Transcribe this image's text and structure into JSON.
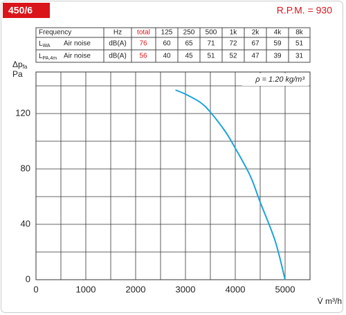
{
  "header": {
    "model": "450/6",
    "rpm": "R.P.M. = 930"
  },
  "table": {
    "columns": [
      "Frequency",
      "Hz",
      "total",
      "125",
      "250",
      "500",
      "1k",
      "2k",
      "4k",
      "8k"
    ],
    "rows": [
      {
        "symbol": "L",
        "sub": "WA",
        "source": "Air noise",
        "unit": "dB(A)",
        "total": 76,
        "values": [
          60,
          65,
          71,
          72,
          67,
          59,
          51
        ]
      },
      {
        "symbol": "L",
        "sub": "PA,4m",
        "source": "Air noise",
        "unit": "dB(A)",
        "total": 56,
        "values": [
          40,
          45,
          51,
          52,
          47,
          39,
          31
        ]
      }
    ]
  },
  "chart_data": {
    "type": "line",
    "y_label": "Δp",
    "y_label_sub": "fa",
    "y_unit": "Pa",
    "x_label": "V̇ m³/h",
    "annotation": "ρ = 1.20 kg/m³",
    "xlim": [
      0,
      5500
    ],
    "xticks": [
      0,
      1000,
      2000,
      3000,
      4000,
      5000
    ],
    "x_minor_ticks": [
      500,
      1500,
      2500,
      3500,
      4500,
      5500
    ],
    "ylim": [
      0,
      150
    ],
    "yticks": [
      0,
      40,
      80,
      120
    ],
    "y_minor_ticks": [
      20,
      60,
      100,
      140
    ],
    "grid": true,
    "series": [
      {
        "color": "#1ba3d9",
        "x": [
          2800,
          3000,
          3300,
          3500,
          3800,
          4000,
          4300,
          4500,
          4800,
          5000
        ],
        "y": [
          137,
          134,
          128,
          121,
          107,
          95,
          75,
          56,
          28,
          0
        ]
      }
    ]
  }
}
